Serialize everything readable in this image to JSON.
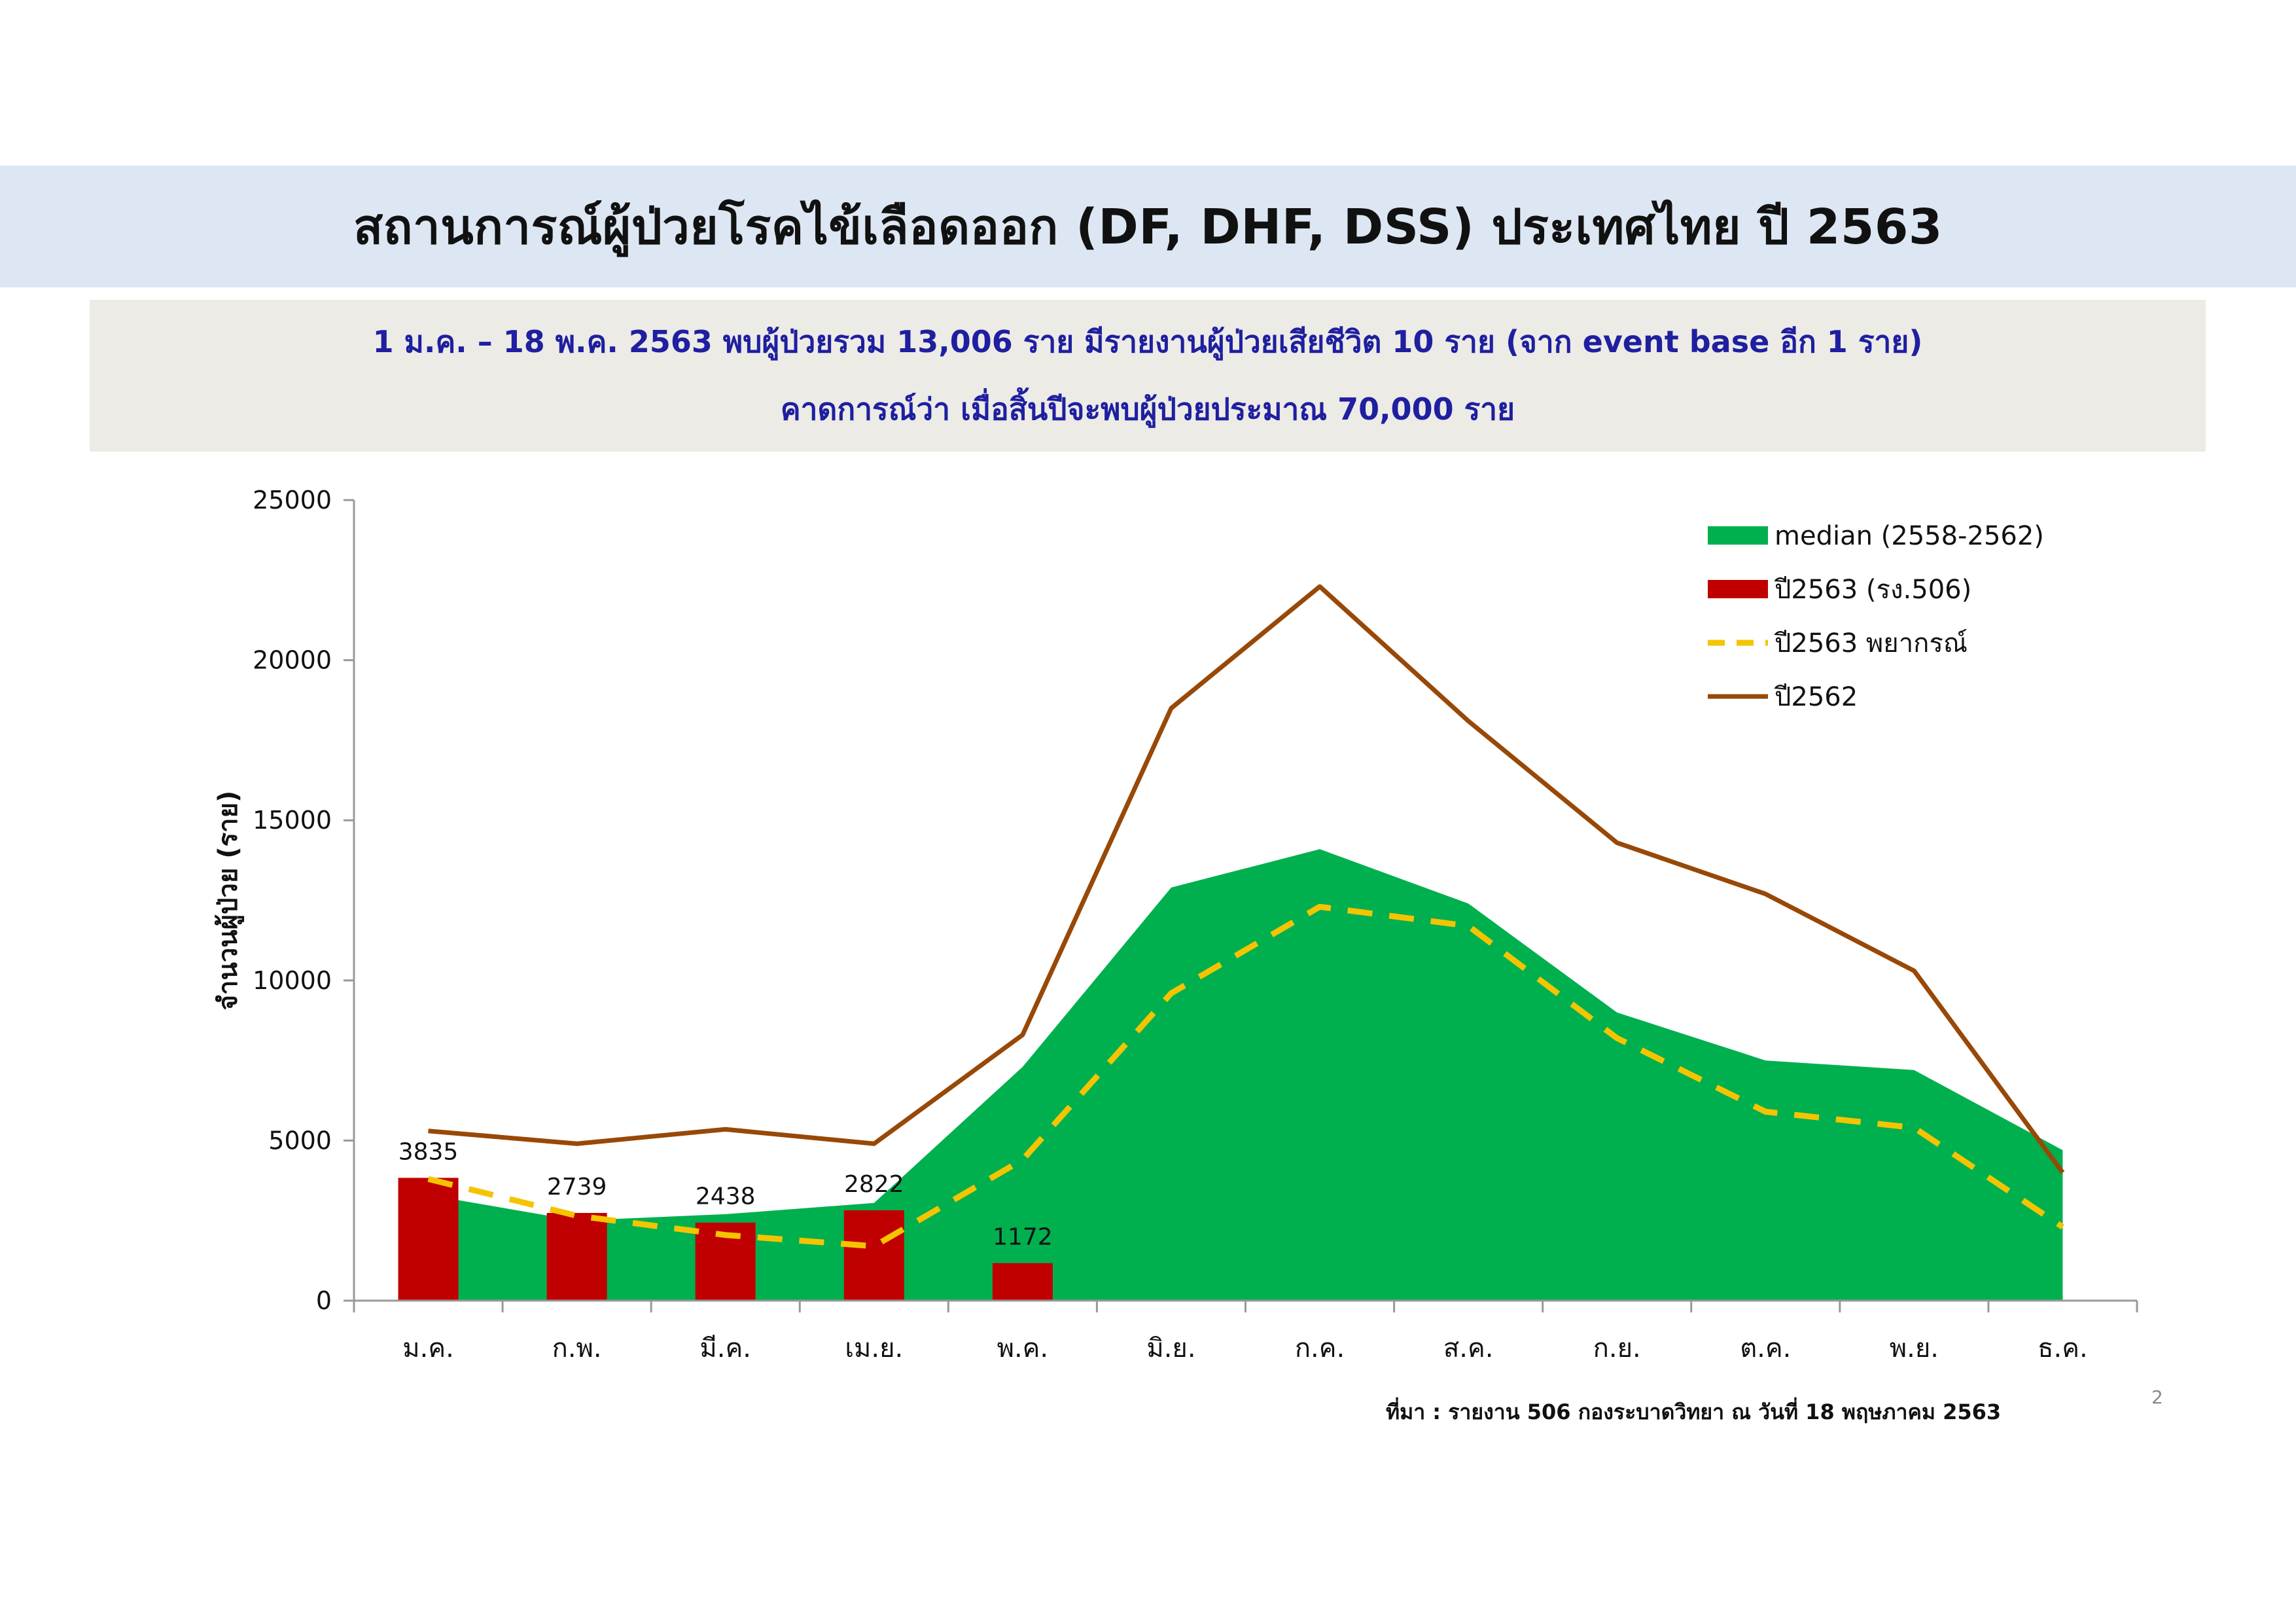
{
  "header": {
    "title": "สถานการณ์ผู้ป่วยโรคไข้เลือดออก (DF, DHF, DSS) ประเทศไทย ปี 2563"
  },
  "summary": {
    "line1": "1 ม.ค. – 18 พ.ค. 2563 พบผู้ป่วยรวม 13,006 ราย มีรายงานผู้ป่วยเสียชีวิต 10 ราย (จาก event base อีก 1 ราย)",
    "line2": "คาดการณ์ว่า เมื่อสิ้นปีจะพบผู้ป่วยประมาณ 70,000 ราย"
  },
  "chart_data": {
    "type": "bar",
    "ylabel": "จำนวนผู้ป่วย (ราย)",
    "xlabel": "",
    "ylim": [
      0,
      25000
    ],
    "yticks": [
      0,
      5000,
      10000,
      15000,
      20000,
      25000
    ],
    "grid": false,
    "legend_position": "top-right",
    "categories": [
      "ม.ค.",
      "ก.พ.",
      "มี.ค.",
      "เม.ย.",
      "พ.ค.",
      "มิ.ย.",
      "ก.ค.",
      "ส.ค.",
      "ก.ย.",
      "ต.ค.",
      "พ.ย.",
      "ธ.ค."
    ],
    "series": [
      {
        "name": "median (2558-2562)",
        "type": "area",
        "color": "#00b04f",
        "values": [
          3300,
          2500,
          2700,
          3050,
          7300,
          12900,
          14100,
          12400,
          9000,
          7500,
          7200,
          4700
        ]
      },
      {
        "name": "ปี2563 (รง.506)",
        "type": "bar",
        "color": "#c00000",
        "values": [
          3835,
          2739,
          2438,
          2822,
          1172,
          null,
          null,
          null,
          null,
          null,
          null,
          null
        ],
        "labels": [
          "3835",
          "2739",
          "2438",
          "2822",
          "1172"
        ]
      },
      {
        "name": "ปี2563 พยากรณ์",
        "type": "line",
        "style": "dashed",
        "color": "#f5c400",
        "values": [
          3800,
          2650,
          2050,
          1700,
          4400,
          9600,
          12300,
          11700,
          8200,
          5900,
          5400,
          2300
        ]
      },
      {
        "name": "ปี2562",
        "type": "line",
        "style": "solid",
        "color": "#984807",
        "values": [
          5300,
          4900,
          5350,
          4900,
          8300,
          18500,
          22300,
          18100,
          14300,
          12700,
          10300,
          4000
        ]
      }
    ]
  },
  "footer": {
    "source": "ที่มา : รายงาน 506 กองระบาดวิทยา ณ วันที่ 18 พฤษภาคม 2563",
    "page_number": "2"
  }
}
